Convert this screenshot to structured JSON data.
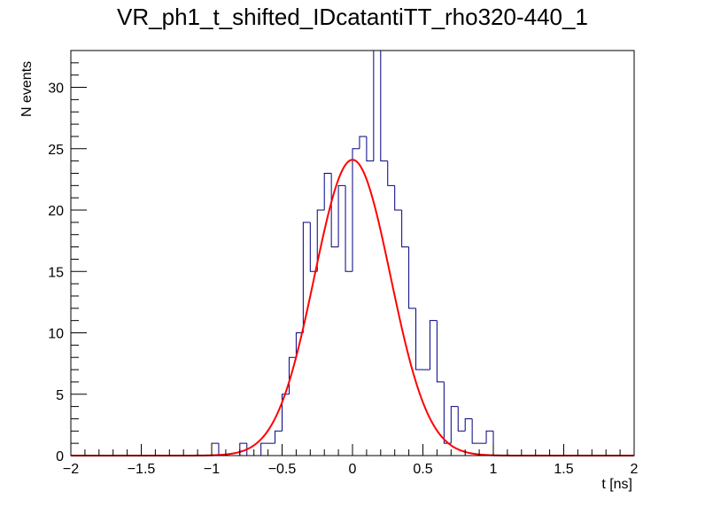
{
  "chart_data": {
    "type": "histogram",
    "title": "VR_ph1_t_shifted_IDcatantiTT_rho320-440_1",
    "xlabel": "t [ns]",
    "ylabel": "N events",
    "xlim": [
      -2,
      2
    ],
    "ylim": [
      0,
      33
    ],
    "x_ticks": [
      "−2",
      "−1.5",
      "−1",
      "−0.5",
      "0",
      "0.5",
      "1",
      "1.5",
      "2"
    ],
    "x_tick_values": [
      -2,
      -1.5,
      -1,
      -0.5,
      0,
      0.5,
      1,
      1.5,
      2
    ],
    "y_ticks": [
      "0",
      "5",
      "10",
      "15",
      "20",
      "25",
      "30"
    ],
    "y_tick_values": [
      0,
      5,
      10,
      15,
      20,
      25,
      30
    ],
    "bin_width": 0.05,
    "histogram": {
      "name": "data",
      "color": "#000080",
      "bins": [
        {
          "x0": -1.0,
          "count": 1
        },
        {
          "x0": -0.95,
          "count": 0
        },
        {
          "x0": -0.9,
          "count": 0
        },
        {
          "x0": -0.85,
          "count": 0
        },
        {
          "x0": -0.8,
          "count": 1
        },
        {
          "x0": -0.75,
          "count": 0
        },
        {
          "x0": -0.7,
          "count": 0
        },
        {
          "x0": -0.65,
          "count": 1
        },
        {
          "x0": -0.6,
          "count": 1
        },
        {
          "x0": -0.55,
          "count": 2
        },
        {
          "x0": -0.5,
          "count": 5
        },
        {
          "x0": -0.45,
          "count": 8
        },
        {
          "x0": -0.4,
          "count": 10
        },
        {
          "x0": -0.35,
          "count": 19
        },
        {
          "x0": -0.3,
          "count": 15
        },
        {
          "x0": -0.25,
          "count": 20
        },
        {
          "x0": -0.2,
          "count": 23
        },
        {
          "x0": -0.15,
          "count": 17
        },
        {
          "x0": -0.1,
          "count": 22
        },
        {
          "x0": -0.05,
          "count": 15
        },
        {
          "x0": 0.0,
          "count": 25
        },
        {
          "x0": 0.05,
          "count": 26
        },
        {
          "x0": 0.1,
          "count": 24
        },
        {
          "x0": 0.15,
          "count": 33
        },
        {
          "x0": 0.2,
          "count": 24
        },
        {
          "x0": 0.25,
          "count": 22
        },
        {
          "x0": 0.3,
          "count": 20
        },
        {
          "x0": 0.35,
          "count": 17
        },
        {
          "x0": 0.4,
          "count": 12
        },
        {
          "x0": 0.45,
          "count": 7
        },
        {
          "x0": 0.5,
          "count": 7
        },
        {
          "x0": 0.55,
          "count": 11
        },
        {
          "x0": 0.6,
          "count": 6
        },
        {
          "x0": 0.65,
          "count": 1
        },
        {
          "x0": 0.7,
          "count": 4
        },
        {
          "x0": 0.75,
          "count": 2
        },
        {
          "x0": 0.8,
          "count": 3
        },
        {
          "x0": 0.85,
          "count": 1
        },
        {
          "x0": 0.9,
          "count": 1
        },
        {
          "x0": 0.95,
          "count": 2
        }
      ]
    },
    "fit": {
      "name": "gaussian-fit",
      "color": "#ff0000",
      "function": "gaussian",
      "amplitude": 24.1,
      "mean": 0.0,
      "sigma": 0.27
    }
  }
}
